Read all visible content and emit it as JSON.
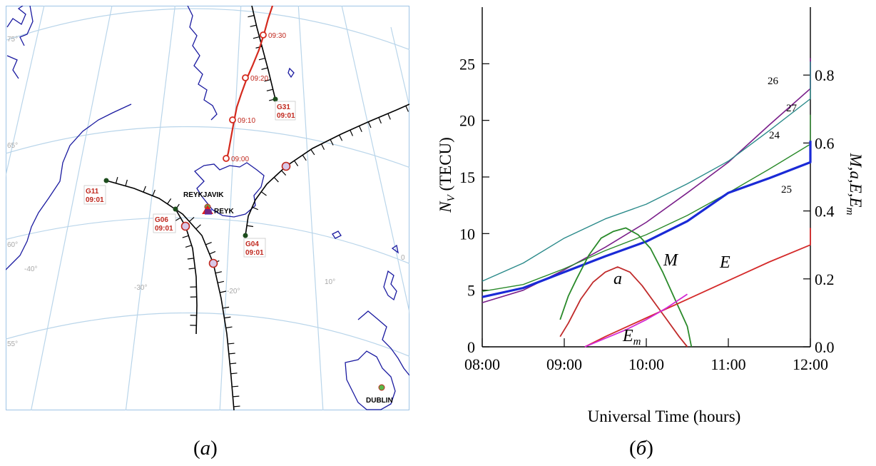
{
  "captions": {
    "a": "a",
    "b": "б"
  },
  "map": {
    "lat_labels": [
      "75°",
      "65°",
      "60°",
      "55°"
    ],
    "lon_labels": [
      "-40°",
      "-30°",
      "-20°",
      "10°",
      "0"
    ],
    "places": [
      {
        "name": "REYKJAVIK",
        "label_color": "#000000"
      },
      {
        "name": "REYK",
        "label_color": "#000000"
      },
      {
        "name": "DUBLIN",
        "label_color": "#000000"
      }
    ],
    "satellites": [
      {
        "id": "G31",
        "time": "09:01"
      },
      {
        "id": "G11",
        "time": "09:01"
      },
      {
        "id": "G06",
        "time": "09:01"
      },
      {
        "id": "G04",
        "time": "09:01"
      }
    ],
    "red_track_times": [
      "09:30",
      "09:20",
      "09:10",
      "09:00"
    ],
    "colors": {
      "graticule": "#b9d5ea",
      "coast": "#1a1aa0",
      "track": "#000000",
      "red_track": "#d42a1e",
      "sat_label": "#c0281e",
      "sat_dot": "#1d4d1d"
    }
  },
  "chart_data": {
    "type": "line",
    "xlabel": "Universal Time (hours)",
    "ylabel": "N_V (TECU)",
    "y2label": "M,a,E,E_m",
    "xlim": [
      8.0,
      12.0
    ],
    "ylim": [
      0,
      30
    ],
    "y2lim": [
      0,
      1.0
    ],
    "x_ticks": [
      "08:00",
      "09:00",
      "10:00",
      "11:00",
      "12:00"
    ],
    "y_ticks": [
      "0",
      "5",
      "10",
      "15",
      "20",
      "25"
    ],
    "y2_ticks": [
      "0.0",
      "0.2",
      "0.4",
      "0.6",
      "0.8"
    ],
    "series": [
      {
        "name": "26",
        "axis": "left",
        "color": "#7a1f8a",
        "width": 1.6,
        "points": [
          [
            8.0,
            3.9
          ],
          [
            8.5,
            5.0
          ],
          [
            9.0,
            6.8
          ],
          [
            9.5,
            8.8
          ],
          [
            10.0,
            11.0
          ],
          [
            10.5,
            13.6
          ],
          [
            11.0,
            16.3
          ],
          [
            11.5,
            19.6
          ],
          [
            12.0,
            22.8
          ],
          [
            12.5,
            25.5
          ]
        ]
      },
      {
        "name": "27",
        "axis": "left",
        "color": "#2a8a8a",
        "width": 1.4,
        "points": [
          [
            8.0,
            5.8
          ],
          [
            8.5,
            7.4
          ],
          [
            9.0,
            9.6
          ],
          [
            9.5,
            11.3
          ],
          [
            10.0,
            12.6
          ],
          [
            10.5,
            14.4
          ],
          [
            11.0,
            16.4
          ],
          [
            11.5,
            19.1
          ],
          [
            12.0,
            21.9
          ],
          [
            12.5,
            25.2
          ]
        ]
      },
      {
        "name": "24",
        "axis": "left",
        "color": "#2a8a2a",
        "width": 1.4,
        "points": [
          [
            8.0,
            4.9
          ],
          [
            8.5,
            5.5
          ],
          [
            9.0,
            6.9
          ],
          [
            9.5,
            8.5
          ],
          [
            10.0,
            9.9
          ],
          [
            10.5,
            11.6
          ],
          [
            11.0,
            13.6
          ],
          [
            11.5,
            15.7
          ],
          [
            12.0,
            17.9
          ],
          [
            12.5,
            20.5
          ]
        ]
      },
      {
        "name": "25",
        "axis": "left",
        "color": "#1a2ad6",
        "width": 3.2,
        "points": [
          [
            8.0,
            4.4
          ],
          [
            8.5,
            5.2
          ],
          [
            9.0,
            6.6
          ],
          [
            9.5,
            8.0
          ],
          [
            10.0,
            9.3
          ],
          [
            10.5,
            11.1
          ],
          [
            11.0,
            13.6
          ],
          [
            11.5,
            14.9
          ],
          [
            12.0,
            16.3
          ],
          [
            12.5,
            18.2
          ]
        ]
      },
      {
        "name": "M",
        "axis": "right",
        "color": "#2a8a2a",
        "width": 1.8,
        "points": [
          [
            8.95,
            0.08
          ],
          [
            9.05,
            0.15
          ],
          [
            9.15,
            0.2
          ],
          [
            9.3,
            0.27
          ],
          [
            9.45,
            0.32
          ],
          [
            9.6,
            0.34
          ],
          [
            9.75,
            0.35
          ],
          [
            9.9,
            0.33
          ],
          [
            10.05,
            0.29
          ],
          [
            10.2,
            0.22
          ],
          [
            10.35,
            0.14
          ],
          [
            10.5,
            0.06
          ],
          [
            10.55,
            0.0
          ]
        ]
      },
      {
        "name": "a",
        "axis": "right",
        "color": "#c02a2a",
        "width": 1.8,
        "points": [
          [
            8.95,
            0.03
          ],
          [
            9.05,
            0.07
          ],
          [
            9.2,
            0.14
          ],
          [
            9.35,
            0.19
          ],
          [
            9.5,
            0.22
          ],
          [
            9.65,
            0.235
          ],
          [
            9.8,
            0.22
          ],
          [
            9.95,
            0.18
          ],
          [
            10.1,
            0.13
          ],
          [
            10.25,
            0.08
          ],
          [
            10.4,
            0.03
          ],
          [
            10.5,
            0.0
          ]
        ]
      },
      {
        "name": "E",
        "axis": "right",
        "color": "#d42a2a",
        "width": 1.8,
        "points": [
          [
            9.25,
            0.0
          ],
          [
            9.5,
            0.03
          ],
          [
            10.0,
            0.085
          ],
          [
            10.5,
            0.14
          ],
          [
            11.0,
            0.195
          ],
          [
            11.5,
            0.25
          ],
          [
            12.0,
            0.3
          ],
          [
            12.5,
            0.35
          ]
        ]
      },
      {
        "name": "E_m",
        "axis": "right",
        "color": "#d42ad4",
        "width": 1.8,
        "points": [
          [
            9.25,
            0.0
          ],
          [
            9.5,
            0.025
          ],
          [
            9.75,
            0.05
          ],
          [
            10.0,
            0.08
          ],
          [
            10.25,
            0.115
          ],
          [
            10.5,
            0.155
          ]
        ]
      }
    ],
    "series_labels": [
      {
        "text": "26",
        "style": "normal"
      },
      {
        "text": "27",
        "style": "normal"
      },
      {
        "text": "24",
        "style": "normal"
      },
      {
        "text": "25",
        "style": "normal"
      },
      {
        "text": "M",
        "style": "italic"
      },
      {
        "text": "a",
        "style": "italic"
      },
      {
        "text": "E",
        "style": "italic"
      },
      {
        "text": "E_m",
        "style": "italic"
      }
    ]
  }
}
